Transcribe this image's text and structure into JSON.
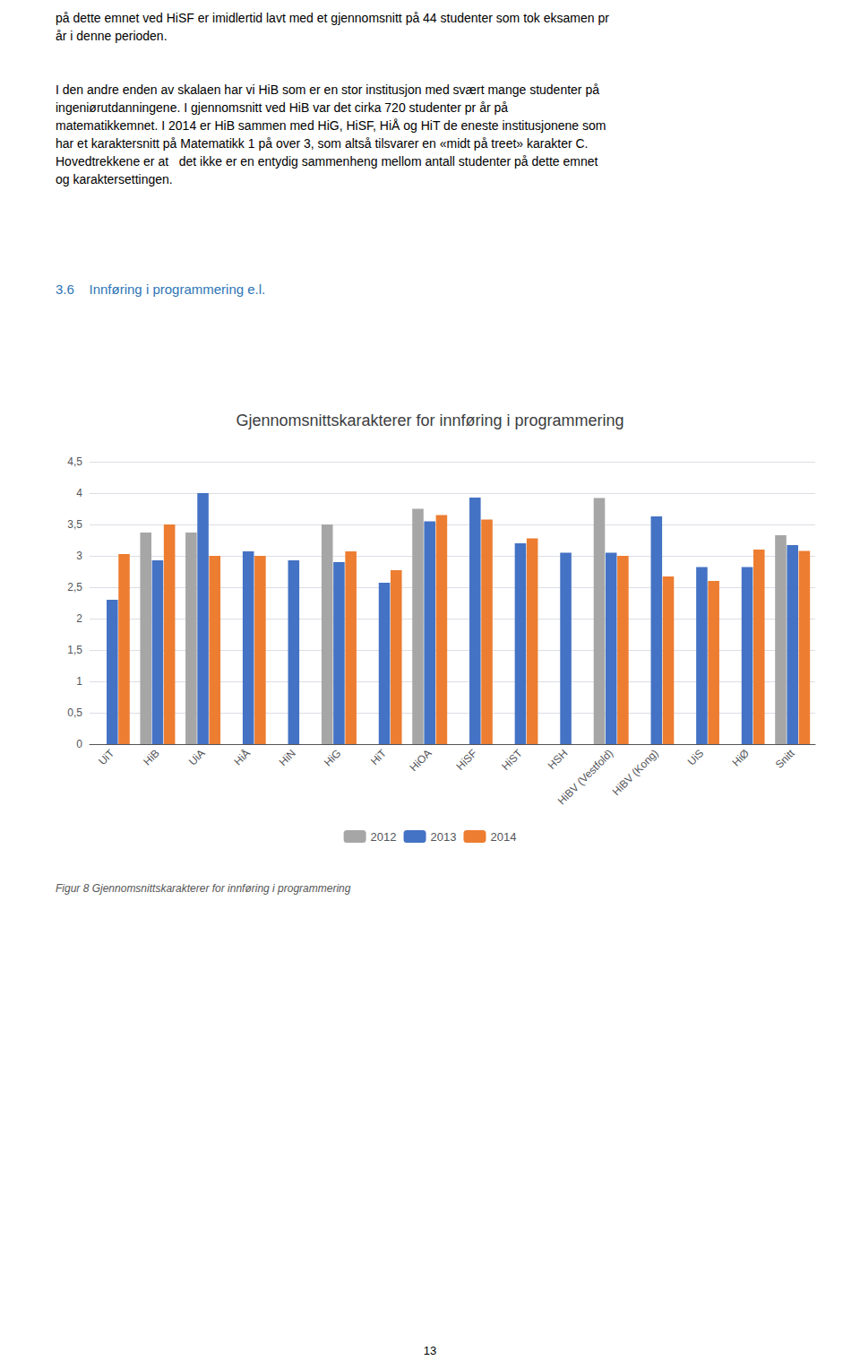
{
  "chart_data": {
    "type": "bar",
    "title": "Gjennomsnittskarakterer for innføring i programmering",
    "categories": [
      "UiT",
      "HiB",
      "UiA",
      "HiÅ",
      "HiN",
      "HiG",
      "HiT",
      "HiOA",
      "HiSF",
      "HiST",
      "HSH",
      "HiBV (Vestfold)",
      "HiBV (Kong)",
      "UiS",
      "HiØ",
      "Snitt"
    ],
    "series": [
      {
        "name": "2012",
        "color": "#a6a6a6",
        "values": [
          null,
          3.37,
          3.37,
          null,
          null,
          3.5,
          null,
          3.75,
          null,
          null,
          null,
          3.92,
          null,
          null,
          null,
          3.33
        ]
      },
      {
        "name": "2013",
        "color": "#4472c4",
        "values": [
          2.3,
          2.93,
          4.0,
          3.07,
          2.93,
          2.9,
          2.57,
          3.55,
          3.93,
          3.2,
          3.05,
          3.05,
          3.63,
          2.82,
          2.82,
          3.17
        ]
      },
      {
        "name": "2014",
        "color": "#ed7d31",
        "values": [
          3.03,
          3.5,
          3.0,
          3.0,
          null,
          3.07,
          2.77,
          3.65,
          3.58,
          3.28,
          null,
          3.0,
          2.67,
          2.6,
          3.1,
          3.08
        ]
      }
    ],
    "ylim": [
      0,
      4.5
    ],
    "yticks": [
      0,
      {
        "value": 0.5,
        "label": "0,5"
      },
      1,
      {
        "value": 1.5,
        "label": "1,5"
      },
      2,
      {
        "value": 2.5,
        "label": "2,5"
      },
      3,
      {
        "value": 3.5,
        "label": "3,5"
      },
      4,
      {
        "value": 4.5,
        "label": "4,5"
      }
    ],
    "grid": true,
    "legend": "bottom",
    "annotations": [
      "på dette emnet ved HiSF er imidlertid lavt med et gjennomsnitt på 44 studenter som tok eksamen pr\når i denne perioden.",
      "I den andre enden av skalaen har vi HiB som er en stor institusjon med svært mange studenter på\ningeniørutdanningene. I gjennomsnitt ved HiB var det cirka 720 studenter pr år på\nmatematikkemnet. I 2014 er HiB sammen med HiG, HiSF, HiÅ og HiT de eneste institusjonene som\nhar et karaktersnitt på Matematikk 1 på over 3, som altså tilsvarer en «midt på treet» karakter C.\nHovedtrekkene er at   det ikke er en entydig sammenheng mellom antall studenter på dette emnet\nog karaktersettingen.",
      "3.6    Innføring i programmering e.l.",
      "Figur 8 Gjennomsnittskarakterer for innføring i programmering",
      "13"
    ]
  }
}
